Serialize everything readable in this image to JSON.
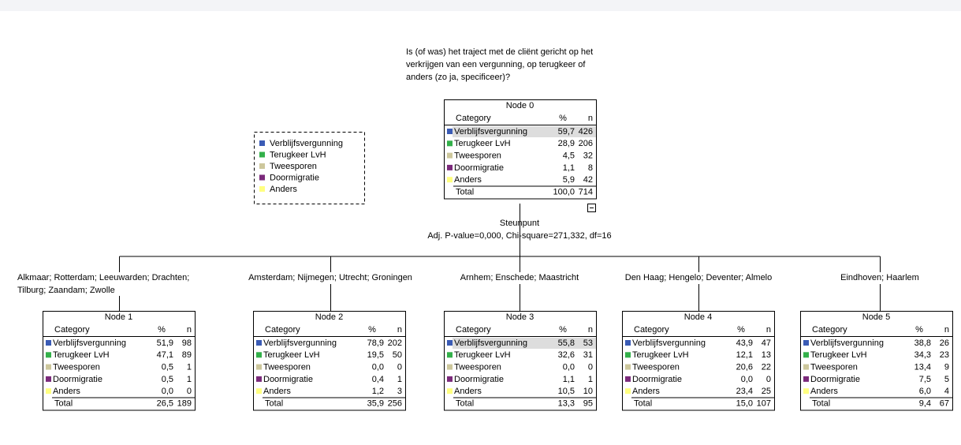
{
  "target_question": [
    "Is (of was) het traject met de cliënt gericht op het",
    "verkrijgen van een vergunning, op terugkeer of",
    "anders (zo ja, specificeer)?"
  ],
  "legend": [
    {
      "label": "Verblijfsvergunning",
      "color": "#3a5bb5"
    },
    {
      "label": "Terugkeer LvH",
      "color": "#33b04a"
    },
    {
      "label": "Tweesporen",
      "color": "#cdc79c"
    },
    {
      "label": "Doormigratie",
      "color": "#7b2a7b"
    },
    {
      "label": "Anders",
      "color": "#ffff80"
    }
  ],
  "split": {
    "variable": "Steunpunt",
    "statistics": "Adj. P-value=0,000, Chi-square=271,332, df=16"
  },
  "branches": [
    [
      "Alkmaar; Rotterdam; Leeuwarden; Drachten;",
      "Tilburg; Zaandam; Zwolle"
    ],
    [
      "Amsterdam; Nijmegen; Utrecht; Groningen"
    ],
    [
      "Arnhem; Enschede; Maastricht"
    ],
    [
      "Den Haag; Hengelo; Deventer; Almelo"
    ],
    [
      "Eindhoven; Haarlem"
    ]
  ],
  "nodes": [
    {
      "title": "Node 0",
      "header": [
        "Category",
        "%",
        "n"
      ],
      "rows": [
        [
          "Verblijfsvergunning",
          "59,7",
          "426"
        ],
        [
          "Terugkeer LvH",
          "28,9",
          "206"
        ],
        [
          "Tweesporen",
          "4,5",
          "32"
        ],
        [
          "Doormigratie",
          "1,1",
          "8"
        ],
        [
          "Anders",
          "5,9",
          "42"
        ]
      ],
      "total": [
        "Total",
        "100,0",
        "714"
      ]
    },
    {
      "title": "Node 1",
      "header": [
        "Category",
        "%",
        "n"
      ],
      "rows": [
        [
          "Verblijfsvergunning",
          "51,9",
          "98"
        ],
        [
          "Terugkeer LvH",
          "47,1",
          "89"
        ],
        [
          "Tweesporen",
          "0,5",
          "1"
        ],
        [
          "Doormigratie",
          "0,5",
          "1"
        ],
        [
          "Anders",
          "0,0",
          "0"
        ]
      ],
      "total": [
        "Total",
        "26,5",
        "189"
      ]
    },
    {
      "title": "Node 2",
      "header": [
        "Category",
        "%",
        "n"
      ],
      "rows": [
        [
          "Verblijfsvergunning",
          "78,9",
          "202"
        ],
        [
          "Terugkeer LvH",
          "19,5",
          "50"
        ],
        [
          "Tweesporen",
          "0,0",
          "0"
        ],
        [
          "Doormigratie",
          "0,4",
          "1"
        ],
        [
          "Anders",
          "1,2",
          "3"
        ]
      ],
      "total": [
        "Total",
        "35,9",
        "256"
      ]
    },
    {
      "title": "Node 3",
      "header": [
        "Category",
        "%",
        "n"
      ],
      "rows": [
        [
          "Verblijfsvergunning",
          "55,8",
          "53"
        ],
        [
          "Terugkeer LvH",
          "32,6",
          "31"
        ],
        [
          "Tweesporen",
          "0,0",
          "0"
        ],
        [
          "Doormigratie",
          "1,1",
          "1"
        ],
        [
          "Anders",
          "10,5",
          "10"
        ]
      ],
      "total": [
        "Total",
        "13,3",
        "95"
      ]
    },
    {
      "title": "Node 4",
      "header": [
        "Category",
        "%",
        "n"
      ],
      "rows": [
        [
          "Verblijfsvergunning",
          "43,9",
          "47"
        ],
        [
          "Terugkeer LvH",
          "12,1",
          "13"
        ],
        [
          "Tweesporen",
          "20,6",
          "22"
        ],
        [
          "Doormigratie",
          "0,0",
          "0"
        ],
        [
          "Anders",
          "23,4",
          "25"
        ]
      ],
      "total": [
        "Total",
        "15,0",
        "107"
      ]
    },
    {
      "title": "Node 5",
      "header": [
        "Category",
        "%",
        "n"
      ],
      "rows": [
        [
          "Verblijfsvergunning",
          "38,8",
          "26"
        ],
        [
          "Terugkeer LvH",
          "34,3",
          "23"
        ],
        [
          "Tweesporen",
          "13,4",
          "9"
        ],
        [
          "Doormigratie",
          "7,5",
          "5"
        ],
        [
          "Anders",
          "6,0",
          "4"
        ]
      ],
      "total": [
        "Total",
        "9,4",
        "67"
      ]
    }
  ]
}
